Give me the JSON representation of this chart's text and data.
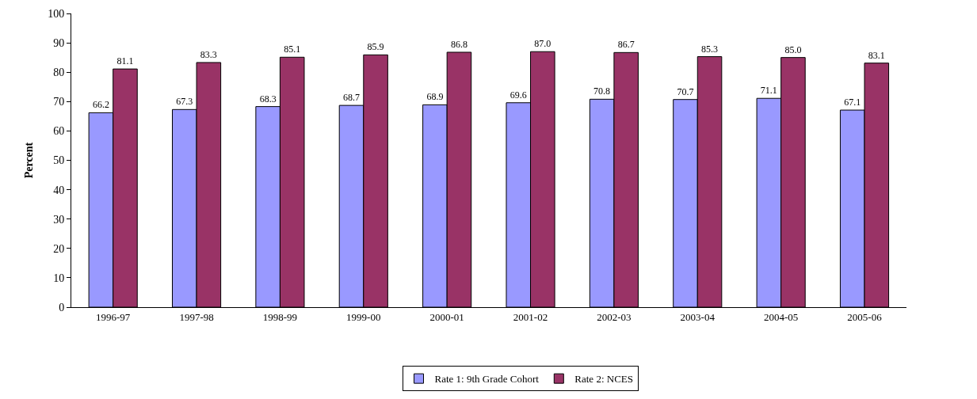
{
  "chart_data": {
    "type": "bar",
    "ylabel": "Percent",
    "categories": [
      "1996-97",
      "1997-98",
      "1998-99",
      "1999-00",
      "2000-01",
      "2001-02",
      "2002-03",
      "2003-04",
      "2004-05",
      "2005-06"
    ],
    "series": [
      {
        "name": "Rate 1: 9th Grade Cohort",
        "color": "#9999ff",
        "values": [
          66.2,
          67.3,
          68.3,
          68.7,
          68.9,
          69.6,
          70.8,
          70.7,
          71.1,
          67.1
        ],
        "value_labels": [
          "66.2",
          "67.3",
          "68.3",
          "68.7",
          "68.9",
          "69.6",
          "70.8",
          "70.7",
          "71.1",
          "67.1"
        ]
      },
      {
        "name": "Rate 2: NCES",
        "color": "#993366",
        "values": [
          81.1,
          83.3,
          85.1,
          85.9,
          86.8,
          87.0,
          86.7,
          85.3,
          85.0,
          83.1
        ],
        "value_labels": [
          "81.1",
          "83.3",
          "85.1",
          "85.9",
          "86.8",
          "87.0",
          "86.7",
          "85.3",
          "85.0",
          "83.1"
        ]
      }
    ],
    "ylim": [
      0,
      100
    ],
    "yticks": [
      0,
      10,
      20,
      30,
      40,
      50,
      60,
      70,
      80,
      90,
      100
    ],
    "legend": "bottom"
  }
}
